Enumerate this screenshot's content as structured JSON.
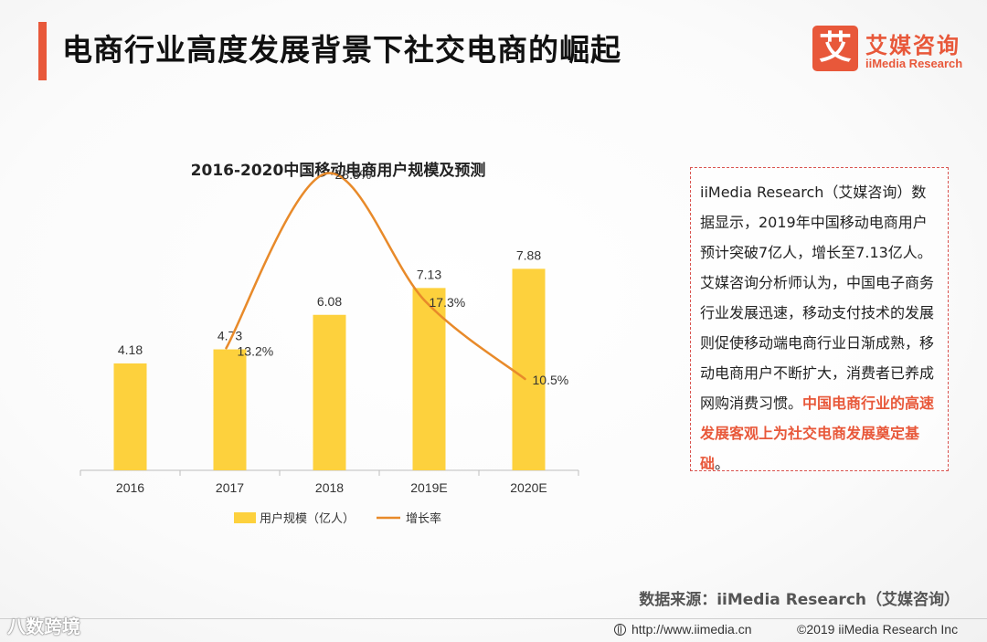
{
  "header": {
    "title": "电商行业高度发展背景下社交电商的崛起",
    "accent_color": "#e8583a"
  },
  "logo": {
    "mark": "艾",
    "name_cn": "艾媒咨询",
    "name_en": "iiMedia Research",
    "color": "#e8583a"
  },
  "chart_data": {
    "type": "bar",
    "title": "2016-2020中国移动电商用户规模及预测",
    "categories": [
      "2016",
      "2017",
      "2018",
      "2019E",
      "2020E"
    ],
    "series": [
      {
        "name": "用户规模（亿人）",
        "kind": "bar",
        "values": [
          4.18,
          4.73,
          6.08,
          7.13,
          7.88
        ],
        "labels": [
          "4.18",
          "4.73",
          "6.08",
          "7.13",
          "7.88"
        ],
        "color": "#fdd13d"
      },
      {
        "name": "增长率",
        "kind": "line",
        "smooth": true,
        "x": [
          "2017",
          "2018",
          "2019E",
          "2020E"
        ],
        "values": [
          13.2,
          28.5,
          17.3,
          10.5
        ],
        "labels": [
          "13.2%",
          "28.5%",
          "17.3%",
          "10.5%"
        ],
        "color": "#e88a2a"
      }
    ],
    "bar_ylim": [
      0,
      10
    ],
    "line_ylim": [
      0,
      35
    ],
    "grid": false,
    "legend_position": "bottom"
  },
  "textbox": {
    "body": "iiMedia Research（艾媒咨询）数据显示，2019年中国移动电商用户预计突破7亿人，增长至7.13亿人。艾媒咨询分析师认为，中国电子商务行业发展迅速，移动支付技术的发展则促使移动端电商行业日渐成熟，移动电商用户不断扩大，消费者已养成网购消费习惯。",
    "highlight": "中国电商行业的高速发展客观上为社交电商发展奠定基础",
    "end": "。",
    "border_color": "#d9534f",
    "highlight_color": "#e8583a"
  },
  "source": "数据来源：iiMedia Research（艾媒咨询）",
  "footer": {
    "url": "http://www.iimedia.cn",
    "copyright": "©2019  iiMedia Research  Inc"
  },
  "watermark": "八数跨境"
}
